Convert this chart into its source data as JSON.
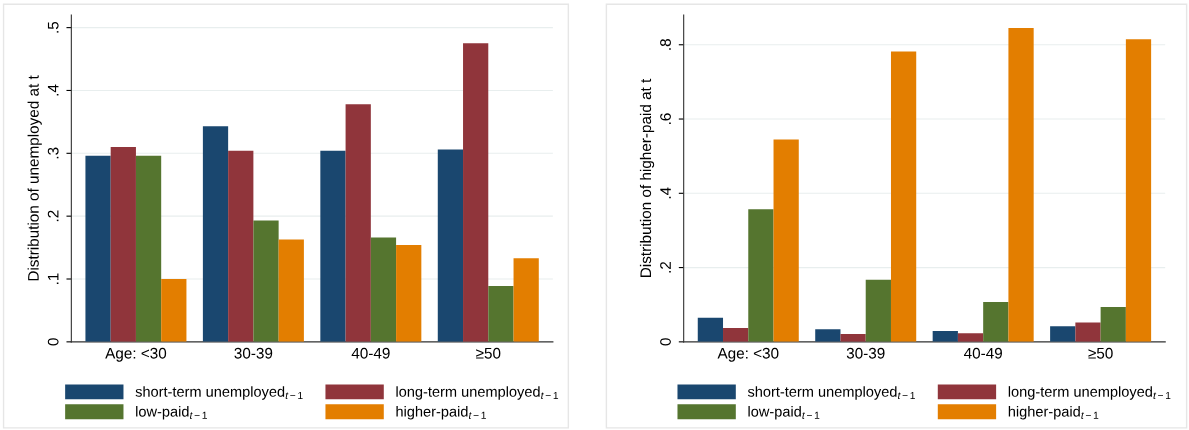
{
  "chart_data": [
    {
      "type": "bar",
      "ylabel": "Distribution of unemployed at t",
      "categories": [
        "Age: <30",
        "30-39",
        "40-49",
        "≥50"
      ],
      "series": [
        {
          "name": "short-term unemployed$_{t−1}$",
          "color": "#1a476f",
          "values": [
            0.296,
            0.343,
            0.304,
            0.306
          ]
        },
        {
          "name": "long-term unemployed$_{t−1}$",
          "color": "#90353b",
          "values": [
            0.31,
            0.304,
            0.378,
            0.475
          ]
        },
        {
          "name": "low-paid$_{t−1}$",
          "color": "#55752f",
          "values": [
            0.296,
            0.193,
            0.166,
            0.089
          ]
        },
        {
          "name": "higher-paid$_{t−1}$",
          "color": "#e37e00",
          "values": [
            0.1,
            0.163,
            0.154,
            0.133
          ]
        }
      ],
      "ylim": [
        0,
        0.52
      ],
      "yticks": [
        {
          "value": 0,
          "label": "0"
        },
        {
          "value": 0.1,
          "label": ".1"
        },
        {
          "value": 0.2,
          "label": ".2"
        },
        {
          "value": 0.3,
          "label": ".3"
        },
        {
          "value": 0.4,
          "label": ".4"
        },
        {
          "value": 0.5,
          "label": ".5"
        }
      ],
      "grid": "y",
      "legend": "bottom"
    },
    {
      "type": "bar",
      "ylabel": "Distribution of higher-paid at t",
      "categories": [
        "Age: <30",
        "30-39",
        "40-49",
        "≥50"
      ],
      "series": [
        {
          "name": "short-term unemployed$_{t−1}$",
          "color": "#1a476f",
          "values": [
            0.065,
            0.034,
            0.029,
            0.042
          ]
        },
        {
          "name": "long-term unemployed$_{t−1}$",
          "color": "#90353b",
          "values": [
            0.037,
            0.021,
            0.023,
            0.052
          ]
        },
        {
          "name": "low-paid$_{t−1}$",
          "color": "#55752f",
          "values": [
            0.357,
            0.167,
            0.107,
            0.094
          ]
        },
        {
          "name": "higher-paid$_{t−1}$",
          "color": "#e37e00",
          "values": [
            0.545,
            0.782,
            0.845,
            0.815
          ]
        }
      ],
      "ylim": [
        0,
        0.88
      ],
      "yticks": [
        {
          "value": 0,
          "label": "0"
        },
        {
          "value": 0.2,
          "label": ".2"
        },
        {
          "value": 0.4,
          "label": ".4"
        },
        {
          "value": 0.6,
          "label": ".6"
        },
        {
          "value": 0.8,
          "label": ".8"
        }
      ],
      "grid": "y",
      "legend": "bottom"
    }
  ]
}
